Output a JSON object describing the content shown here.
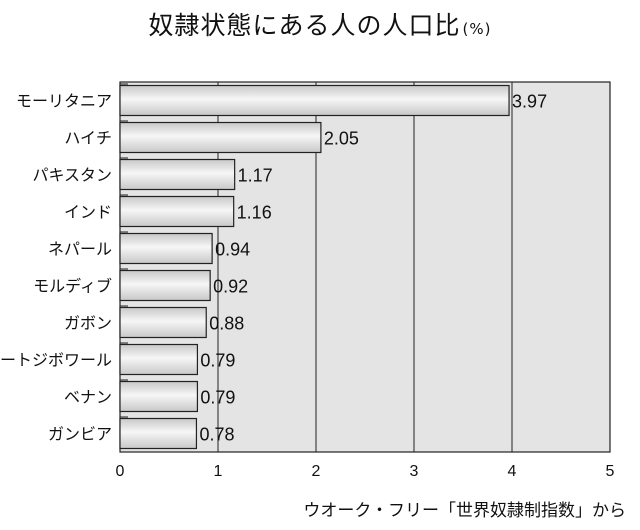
{
  "title": "奴隷状態にある人の人口比",
  "title_unit": "(%)",
  "source": "ウオーク・フリー「世界奴隷制指数」から",
  "colors": {
    "plot_background": "#e4e4e4",
    "bar_fill_light": "#f6f6f6",
    "bar_fill_dark": "#c8c8c8",
    "bar_stroke": "#222222",
    "grid": "#222222"
  },
  "chart_data": {
    "type": "bar",
    "orientation": "horizontal",
    "title": "奴隷状態にある人の人口比",
    "unit": "%",
    "categories": [
      "モーリタニア",
      "ハイチ",
      "パキスタン",
      "インド",
      "ネパール",
      "モルディブ",
      "ガボン",
      "コートジボワール",
      "ベナン",
      "ガンビア"
    ],
    "values": [
      3.97,
      2.05,
      1.17,
      1.16,
      0.94,
      0.92,
      0.88,
      0.79,
      0.79,
      0.78
    ],
    "value_labels": [
      "3.97",
      "2.05",
      "1.17",
      "1.16",
      "0.94",
      "0.92",
      "0.88",
      "0.79",
      "0.79",
      "0.78"
    ],
    "xlim": [
      0,
      5
    ],
    "x_ticks": [
      "0",
      "1",
      "2",
      "3",
      "4",
      "5"
    ],
    "grid": true,
    "legend": "none"
  }
}
